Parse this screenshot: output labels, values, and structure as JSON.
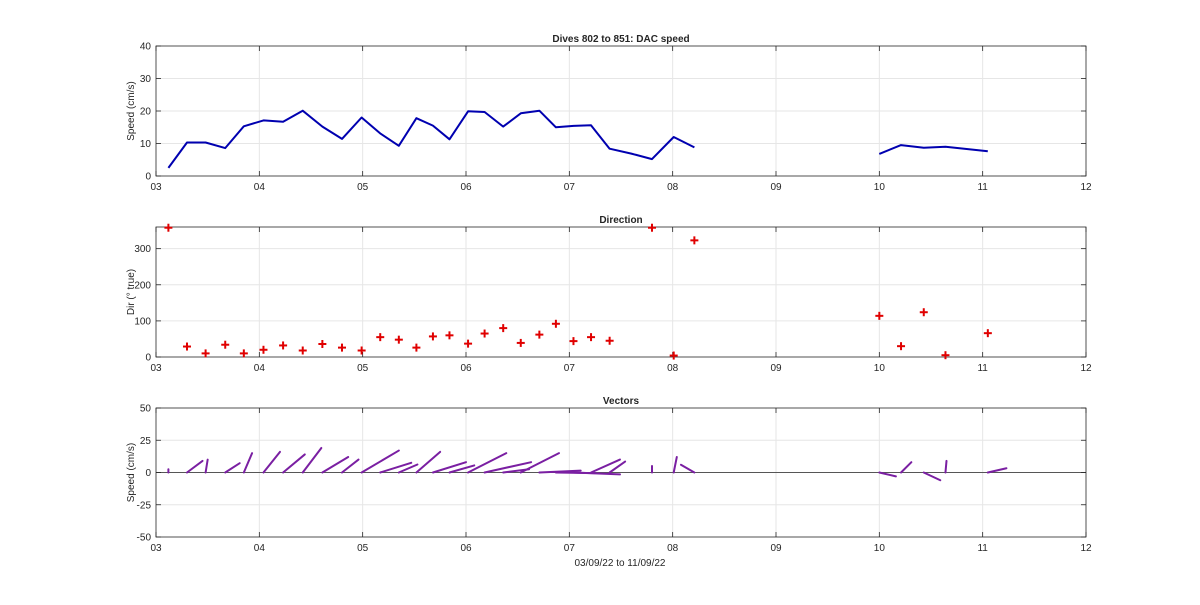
{
  "colors": {
    "speed": "#0000b0",
    "direction": "#e00000",
    "vectors": "#7a1fa2",
    "axis": "#262626",
    "grid": "#e6e6e6"
  },
  "figure_xlabel": "03/09/22 to 11/09/22",
  "chart_data": [
    {
      "type": "line",
      "title": "Dives 802 to 851: DAC speed",
      "ylabel": "Speed (cm/s)",
      "xlabel": "",
      "xlim": [
        3,
        12
      ],
      "ylim": [
        0,
        40
      ],
      "xticks": [
        "03",
        "04",
        "05",
        "06",
        "07",
        "08",
        "09",
        "10",
        "11",
        "12"
      ],
      "yticks": [
        "0",
        "10",
        "20",
        "30",
        "40"
      ],
      "grid": true,
      "series": [
        {
          "segments": [
            [
              [
                3.12,
                2.5
              ],
              [
                3.3,
                10.3
              ],
              [
                3.48,
                10.3
              ],
              [
                3.67,
                8.6
              ],
              [
                3.85,
                15.3
              ],
              [
                4.04,
                17.1
              ],
              [
                4.23,
                16.7
              ],
              [
                4.42,
                20.1
              ],
              [
                4.61,
                15.2
              ],
              [
                4.8,
                11.4
              ],
              [
                4.99,
                18.0
              ],
              [
                5.17,
                13.1
              ],
              [
                5.35,
                9.3
              ],
              [
                5.52,
                17.8
              ],
              [
                5.68,
                15.5
              ],
              [
                5.84,
                11.3
              ],
              [
                6.02,
                19.9
              ],
              [
                6.18,
                19.7
              ],
              [
                6.36,
                15.2
              ],
              [
                6.53,
                19.3
              ],
              [
                6.71,
                20.1
              ],
              [
                6.87,
                15.0
              ],
              [
                7.04,
                15.4
              ],
              [
                7.21,
                15.6
              ],
              [
                7.39,
                8.4
              ],
              [
                7.6,
                6.9
              ],
              [
                7.8,
                5.2
              ],
              [
                8.01,
                12.0
              ],
              [
                8.21,
                8.8
              ]
            ],
            [
              [
                10.0,
                6.8
              ],
              [
                10.21,
                9.5
              ],
              [
                10.43,
                8.7
              ],
              [
                10.64,
                9.0
              ],
              [
                11.05,
                7.6
              ]
            ]
          ]
        }
      ]
    },
    {
      "type": "scatter",
      "title": "Direction",
      "ylabel": "Dir (° true)",
      "xlabel": "",
      "xlim": [
        3,
        12
      ],
      "ylim": [
        0,
        360
      ],
      "xticks": [
        "03",
        "04",
        "05",
        "06",
        "07",
        "08",
        "09",
        "10",
        "11",
        "12"
      ],
      "yticks": [
        "0",
        "100",
        "200",
        "300"
      ],
      "grid": true,
      "marker": "+",
      "points": [
        [
          3.12,
          358
        ],
        [
          3.3,
          29
        ],
        [
          3.48,
          10
        ],
        [
          3.67,
          34
        ],
        [
          3.85,
          10
        ],
        [
          4.04,
          20
        ],
        [
          4.23,
          32
        ],
        [
          4.42,
          18
        ],
        [
          4.61,
          36
        ],
        [
          4.8,
          26
        ],
        [
          4.99,
          18
        ],
        [
          5.17,
          55
        ],
        [
          5.35,
          48
        ],
        [
          5.52,
          26
        ],
        [
          5.68,
          57
        ],
        [
          5.84,
          60
        ],
        [
          6.02,
          37
        ],
        [
          6.18,
          65
        ],
        [
          6.36,
          80
        ],
        [
          6.53,
          39
        ],
        [
          6.71,
          62
        ],
        [
          6.87,
          92
        ],
        [
          7.04,
          44
        ],
        [
          7.21,
          55
        ],
        [
          7.39,
          45
        ],
        [
          7.8,
          358
        ],
        [
          8.01,
          4
        ],
        [
          8.21,
          323
        ],
        [
          10.0,
          114
        ],
        [
          10.21,
          30
        ],
        [
          10.43,
          124
        ],
        [
          10.64,
          5
        ],
        [
          11.05,
          66
        ]
      ]
    },
    {
      "type": "vectors",
      "title": "Vectors",
      "ylabel": "Speed (cm/s)",
      "xlabel": "03/09/22 to 11/09/22",
      "xlim": [
        3,
        12
      ],
      "ylim": [
        -50,
        50
      ],
      "xticks": [
        "03",
        "04",
        "05",
        "06",
        "07",
        "08",
        "09",
        "10",
        "11",
        "12"
      ],
      "yticks": [
        "-50",
        "-25",
        "0",
        "25",
        "50"
      ],
      "grid": true,
      "note_values": "each vector starts at (x, 0); du in days along x, dv in cm/s",
      "vectors": [
        [
          3.12,
          0.0,
          2.5
        ],
        [
          3.3,
          0.15,
          9.0
        ],
        [
          3.48,
          0.02,
          10.0
        ],
        [
          3.67,
          0.14,
          7.2
        ],
        [
          3.85,
          0.08,
          15.0
        ],
        [
          4.04,
          0.16,
          16.0
        ],
        [
          4.23,
          0.21,
          14.0
        ],
        [
          4.42,
          0.18,
          19.0
        ],
        [
          4.61,
          0.25,
          12.0
        ],
        [
          4.8,
          0.16,
          10.0
        ],
        [
          4.99,
          0.36,
          17.0
        ],
        [
          5.17,
          0.3,
          7.5
        ],
        [
          5.35,
          0.18,
          6.2
        ],
        [
          5.52,
          0.23,
          16.0
        ],
        [
          5.68,
          0.32,
          8.0
        ],
        [
          5.84,
          0.24,
          5.5
        ],
        [
          6.02,
          0.37,
          15.0
        ],
        [
          6.18,
          0.45,
          8.0
        ],
        [
          6.36,
          0.25,
          2.5
        ],
        [
          6.53,
          0.37,
          15.0
        ],
        [
          6.71,
          0.4,
          1.5
        ],
        [
          6.87,
          0.38,
          -0.5
        ],
        [
          7.04,
          0.45,
          -1.5
        ],
        [
          7.21,
          0.28,
          10.0
        ],
        [
          7.39,
          0.15,
          8.5
        ],
        [
          7.8,
          0.0,
          5.0
        ],
        [
          8.01,
          0.03,
          12.0
        ],
        [
          8.21,
          -0.13,
          6.0
        ],
        [
          10.0,
          0.16,
          -3.0
        ],
        [
          10.21,
          0.1,
          8.0
        ],
        [
          10.43,
          0.16,
          -6.0
        ],
        [
          10.64,
          0.01,
          9.0
        ],
        [
          11.05,
          0.18,
          3.3
        ]
      ]
    }
  ]
}
